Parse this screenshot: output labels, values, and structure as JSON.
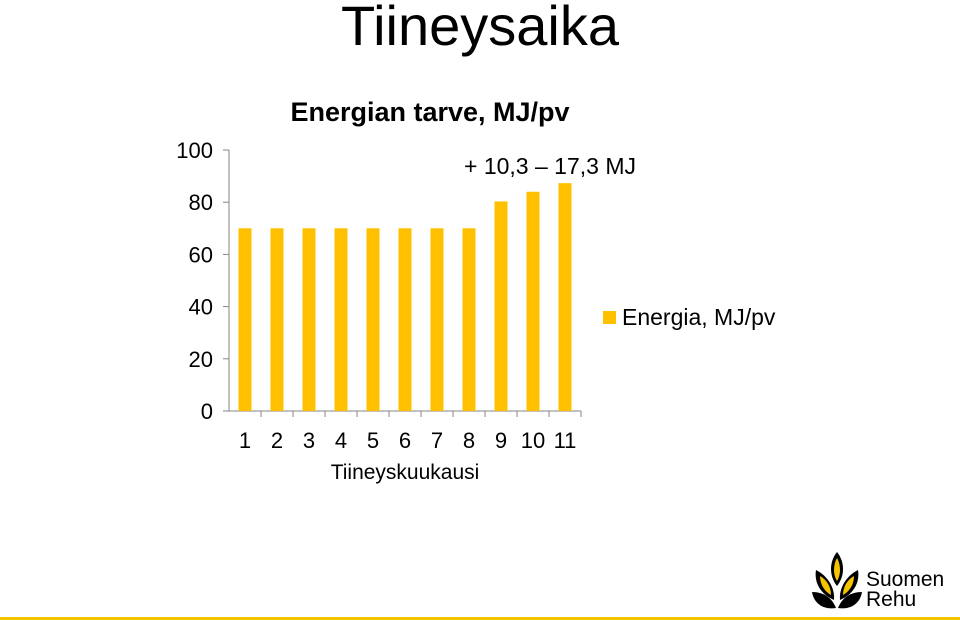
{
  "slide": {
    "title": "Tiineysaika"
  },
  "chart_data": {
    "type": "bar",
    "title": "Energian tarve, MJ/pv",
    "xlabel": "Tiineyskuukausi",
    "ylabel": "",
    "categories": [
      "1",
      "2",
      "3",
      "4",
      "5",
      "6",
      "7",
      "8",
      "9",
      "10",
      "11"
    ],
    "series": [
      {
        "name": "Energia, MJ/pv",
        "values": [
          70,
          70,
          70,
          70,
          70,
          70,
          70,
          70,
          80.3,
          84,
          87.3
        ],
        "color": "#ffc000"
      }
    ],
    "ylim": [
      0,
      100
    ],
    "yticks": [
      "0",
      "20",
      "40",
      "60",
      "80",
      "100"
    ],
    "grid": false,
    "legend": "right",
    "annotation": "+ 10,3 – 17,3 MJ"
  },
  "logo": {
    "line1": "Suomen",
    "line2": "Rehu",
    "color": "#f5c400"
  }
}
